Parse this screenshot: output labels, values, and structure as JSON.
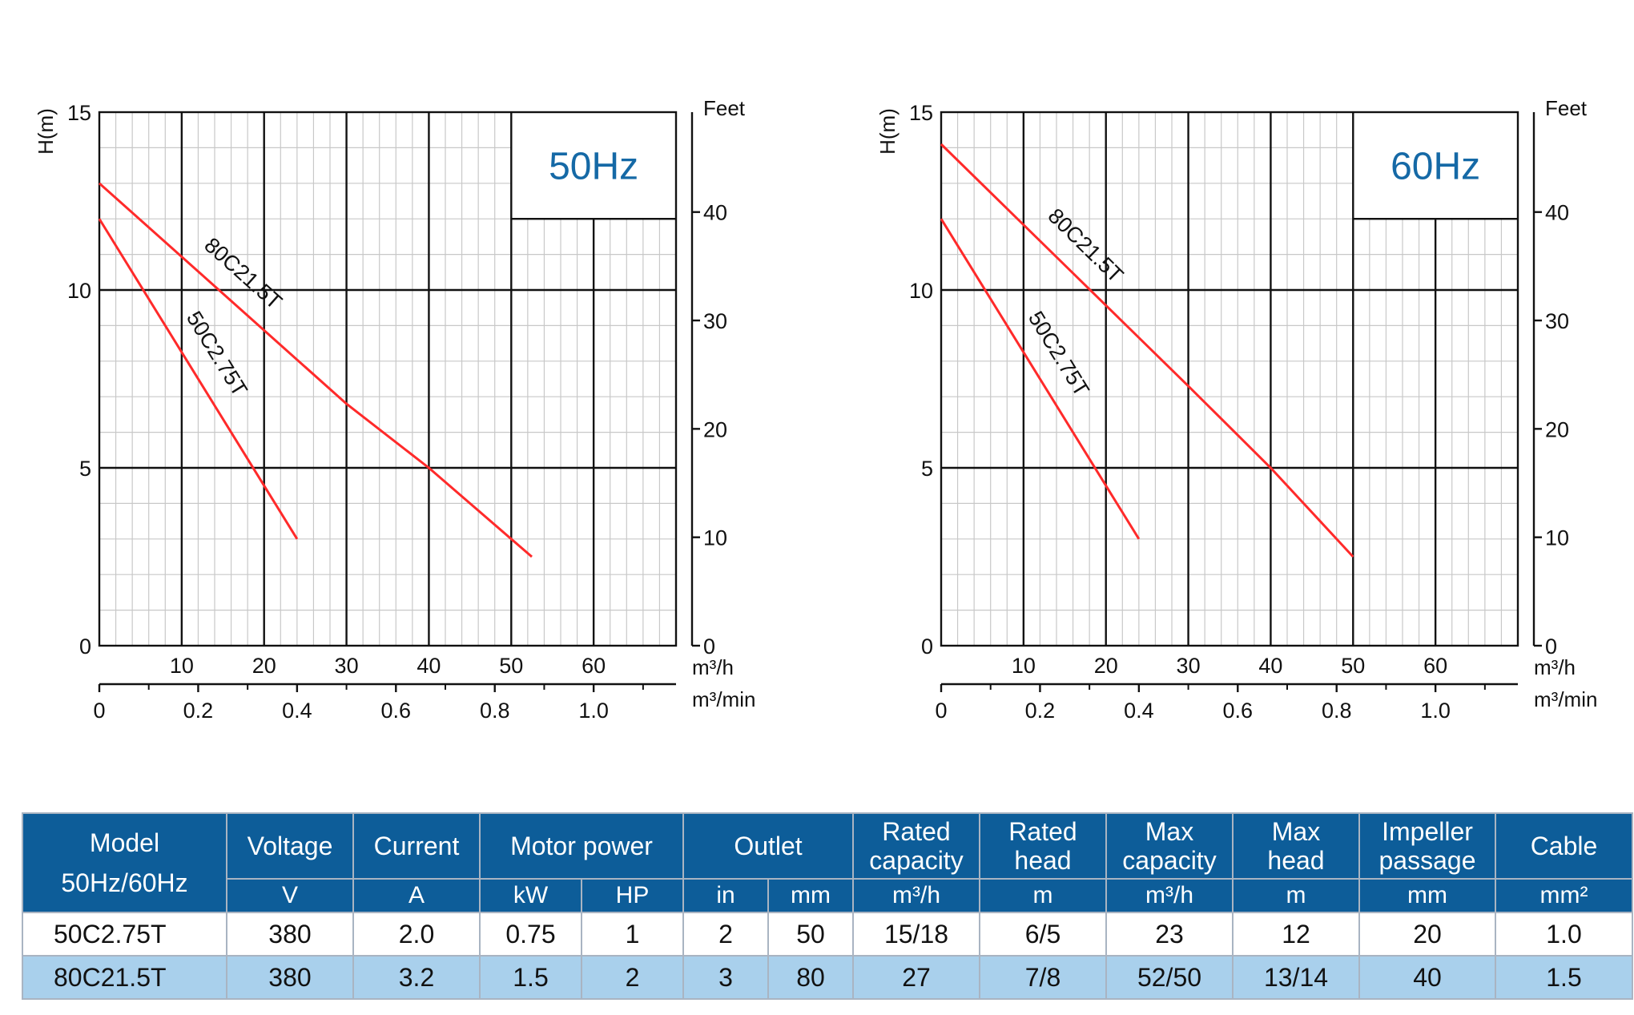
{
  "chart_data": [
    {
      "type": "line",
      "panel_label": "50Hz",
      "ylabel": "H(m)",
      "y2label": "Feet",
      "xlabel": "m³/h",
      "x2label": "m³/min",
      "xlim": [
        0,
        70
      ],
      "ylim": [
        0,
        15
      ],
      "x_ticks": [
        10,
        20,
        30,
        40,
        50,
        60
      ],
      "y_ticks": [
        0,
        5,
        10,
        15
      ],
      "y2_ticks": [
        0,
        10,
        20,
        30,
        40
      ],
      "x2_ticks": [
        "0",
        "0.2",
        "0.4",
        "0.6",
        "0.8",
        "1.0"
      ],
      "grid": true,
      "series": [
        {
          "name": "50C2.75T",
          "points": [
            [
              0,
              12
            ],
            [
              20,
              4.5
            ],
            [
              24,
              3
            ]
          ]
        },
        {
          "name": "80C21.5T",
          "points": [
            [
              0,
              13
            ],
            [
              30,
              6.8
            ],
            [
              40,
              5
            ],
            [
              52.5,
              2.5
            ]
          ]
        }
      ]
    },
    {
      "type": "line",
      "panel_label": "60Hz",
      "ylabel": "H(m)",
      "y2label": "Feet",
      "xlabel": "m³/h",
      "x2label": "m³/min",
      "xlim": [
        0,
        70
      ],
      "ylim": [
        0,
        15
      ],
      "x_ticks": [
        10,
        20,
        30,
        40,
        50,
        60
      ],
      "y_ticks": [
        0,
        5,
        10,
        15
      ],
      "y2_ticks": [
        0,
        10,
        20,
        30,
        40
      ],
      "x2_ticks": [
        "0",
        "0.2",
        "0.4",
        "0.6",
        "0.8",
        "1.0"
      ],
      "grid": true,
      "series": [
        {
          "name": "50C2.75T",
          "points": [
            [
              0,
              12
            ],
            [
              20,
              4.5
            ],
            [
              24,
              3
            ]
          ]
        },
        {
          "name": "80C21.5T",
          "points": [
            [
              0,
              14.1
            ],
            [
              30,
              7.3
            ],
            [
              40,
              5
            ],
            [
              50,
              2.5
            ]
          ]
        }
      ]
    }
  ],
  "colors": {
    "curve": "#ff2a2a",
    "header_bg": "#0d5d99",
    "panel_label": "#1569a6",
    "row_alt": "#a9d0ec"
  },
  "table": {
    "headers": {
      "model": "Model",
      "model_sub": "50Hz/60Hz",
      "voltage": "Voltage",
      "current": "Current",
      "motor_power": "Motor power",
      "outlet": "Outlet",
      "rated_capacity": [
        "Rated",
        "capacity"
      ],
      "rated_head": [
        "Rated",
        "head"
      ],
      "max_capacity": [
        "Max",
        "capacity"
      ],
      "max_head": [
        "Max",
        "head"
      ],
      "impeller": [
        "Impeller",
        "passage"
      ],
      "cable": "Cable"
    },
    "units": [
      "V",
      "A",
      "kW",
      "HP",
      "in",
      "mm",
      "m³/h",
      "m",
      "m³/h",
      "m",
      "mm",
      "mm²"
    ],
    "rows": [
      [
        "50C2.75T",
        "380",
        "2.0",
        "0.75",
        "1",
        "2",
        "50",
        "15/18",
        "6/5",
        "23",
        "12",
        "20",
        "1.0"
      ],
      [
        "80C21.5T",
        "380",
        "3.2",
        "1.5",
        "2",
        "3",
        "80",
        "27",
        "7/8",
        "52/50",
        "13/14",
        "40",
        "1.5"
      ]
    ]
  }
}
